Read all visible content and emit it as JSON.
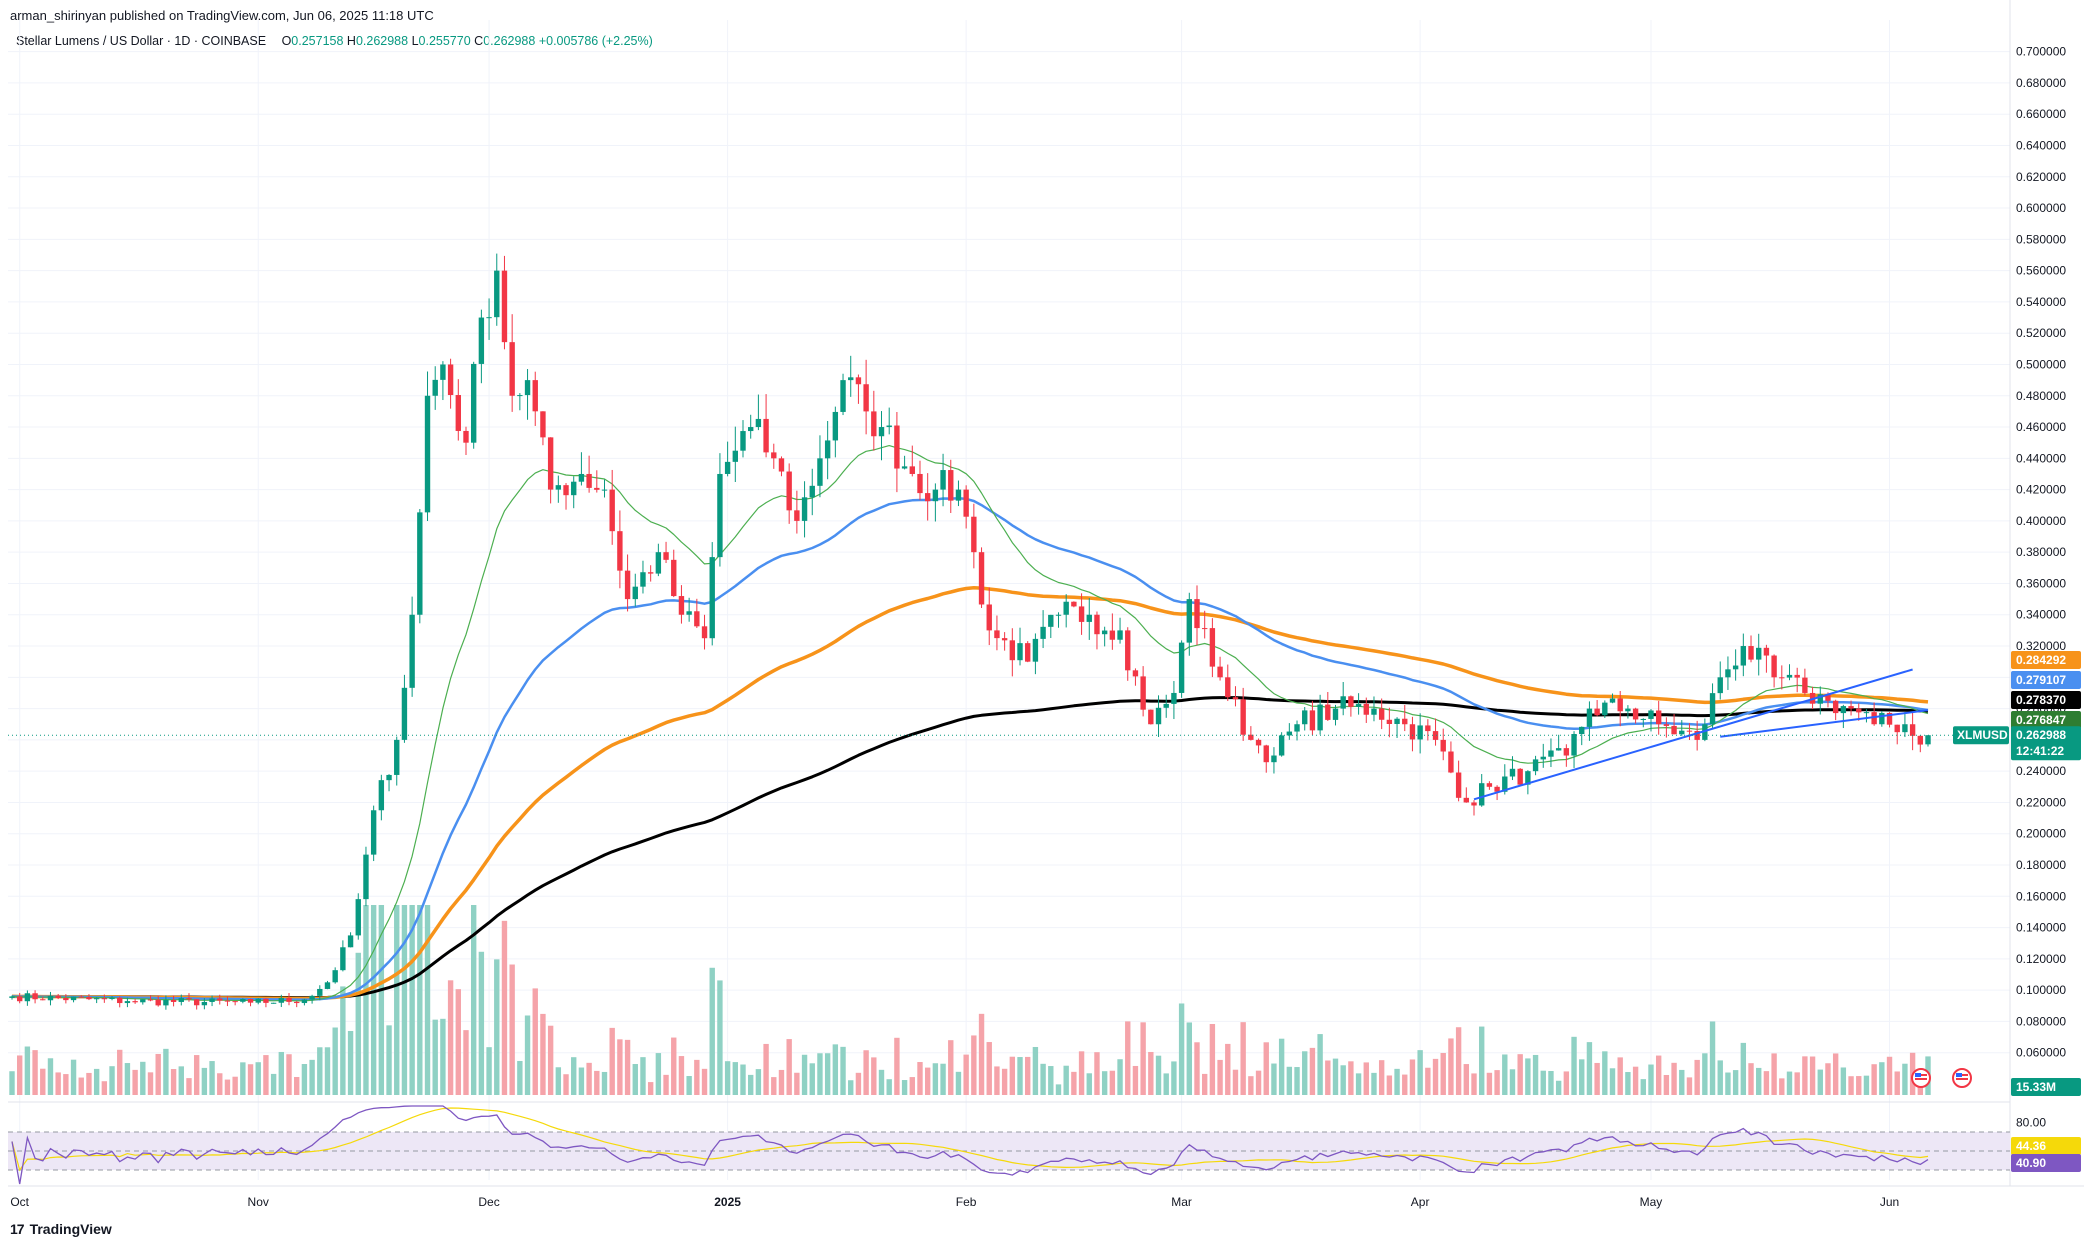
{
  "header": {
    "publisher_line": "arman_shirinyan published on TradingView.com, Jun 06, 2025 11:18 UTC"
  },
  "symbol": {
    "name": "Stellar Lumens / US Dollar · 1D · COINBASE",
    "open_label": "O",
    "open": "0.257158",
    "high_label": "H",
    "high": "0.262988",
    "low_label": "L",
    "low": "0.255770",
    "close_label": "C",
    "close": "0.262988",
    "change": "+0.005786 (+2.25%)"
  },
  "footer": {
    "logo_mark": "17",
    "logo_text": "TradingView"
  },
  "colors": {
    "up": "#089981",
    "down": "#f23645",
    "vol_up": "#8fd1c4",
    "vol_down": "#f5a3a9",
    "ema20": "#4caf50",
    "ema50": "#4a8ff0",
    "ema100": "#f7931a",
    "ema200": "#000000",
    "trendline": "#2962ff",
    "rsi": "#7e57c2",
    "rsi_ma": "#f5d90a",
    "rsi_band": "#ede7f6",
    "grid": "#f0f3fa"
  },
  "chart_data": {
    "type": "candlestick",
    "symbol": "XLMUSD",
    "exchange": "COINBASE",
    "interval": "1D",
    "y_axis": {
      "ylim": [
        0.04,
        0.71
      ],
      "ticks": [
        "0.700000",
        "0.680000",
        "0.660000",
        "0.640000",
        "0.620000",
        "0.600000",
        "0.580000",
        "0.560000",
        "0.540000",
        "0.520000",
        "0.500000",
        "0.480000",
        "0.460000",
        "0.440000",
        "0.420000",
        "0.400000",
        "0.380000",
        "0.360000",
        "0.340000",
        "0.320000",
        "0.300000",
        "0.280000",
        "0.260000",
        "0.240000",
        "0.220000",
        "0.200000",
        "0.180000",
        "0.160000",
        "0.140000",
        "0.120000",
        "0.100000",
        "0.080000",
        "0.060000"
      ]
    },
    "x_axis": {
      "ticks": [
        {
          "label": "Oct",
          "date": "2024-10-01"
        },
        {
          "label": "Nov",
          "date": "2024-11-01"
        },
        {
          "label": "Dec",
          "date": "2024-12-01"
        },
        {
          "label": "2025",
          "date": "2025-01-01"
        },
        {
          "label": "Feb",
          "date": "2025-02-01"
        },
        {
          "label": "Mar",
          "date": "2025-03-01"
        },
        {
          "label": "Apr",
          "date": "2025-04-01"
        },
        {
          "label": "May",
          "date": "2025-05-01"
        },
        {
          "label": "Jun",
          "date": "2025-06-01"
        }
      ]
    },
    "price_anchors": [
      [
        "2024-09-30",
        0.096
      ],
      [
        "2024-10-15",
        0.093
      ],
      [
        "2024-10-31",
        0.092
      ],
      [
        "2024-11-07",
        0.094
      ],
      [
        "2024-11-10",
        0.105
      ],
      [
        "2024-11-13",
        0.135
      ],
      [
        "2024-11-16",
        0.215
      ],
      [
        "2024-11-19",
        0.26
      ],
      [
        "2024-11-21",
        0.34
      ],
      [
        "2024-11-23",
        0.48
      ],
      [
        "2024-11-25",
        0.5
      ],
      [
        "2024-11-28",
        0.45
      ],
      [
        "2024-11-30",
        0.53
      ],
      [
        "2024-12-02",
        0.56
      ],
      [
        "2024-12-04",
        0.48
      ],
      [
        "2024-12-06",
        0.49
      ],
      [
        "2024-12-09",
        0.42
      ],
      [
        "2024-12-13",
        0.43
      ],
      [
        "2024-12-16",
        0.42
      ],
      [
        "2024-12-19",
        0.35
      ],
      [
        "2024-12-23",
        0.38
      ],
      [
        "2024-12-26",
        0.34
      ],
      [
        "2024-12-29",
        0.325
      ],
      [
        "2024-12-31",
        0.43
      ],
      [
        "2025-01-04",
        0.46
      ],
      [
        "2025-01-07",
        0.44
      ],
      [
        "2025-01-10",
        0.4
      ],
      [
        "2025-01-13",
        0.44
      ],
      [
        "2025-01-16",
        0.49
      ],
      [
        "2025-01-19",
        0.47
      ],
      [
        "2025-01-21",
        0.46
      ],
      [
        "2025-01-25",
        0.43
      ],
      [
        "2025-01-28",
        0.42
      ],
      [
        "2025-01-31",
        0.42
      ],
      [
        "2025-02-02",
        0.38
      ],
      [
        "2025-02-04",
        0.33
      ],
      [
        "2025-02-09",
        0.31
      ],
      [
        "2025-02-13",
        0.34
      ],
      [
        "2025-02-17",
        0.34
      ],
      [
        "2025-02-21",
        0.33
      ],
      [
        "2025-02-25",
        0.27
      ],
      [
        "2025-02-28",
        0.29
      ],
      [
        "2025-03-02",
        0.35
      ],
      [
        "2025-03-06",
        0.3
      ],
      [
        "2025-03-10",
        0.26
      ],
      [
        "2025-03-13",
        0.25
      ],
      [
        "2025-03-16",
        0.27
      ],
      [
        "2025-03-21",
        0.28
      ],
      [
        "2025-03-26",
        0.28
      ],
      [
        "2025-03-30",
        0.27
      ],
      [
        "2025-04-03",
        0.26
      ],
      [
        "2025-04-07",
        0.22
      ],
      [
        "2025-04-10",
        0.23
      ],
      [
        "2025-04-15",
        0.24
      ],
      [
        "2025-04-20",
        0.25
      ],
      [
        "2025-04-23",
        0.28
      ],
      [
        "2025-04-28",
        0.28
      ],
      [
        "2025-05-02",
        0.27
      ],
      [
        "2025-05-07",
        0.26
      ],
      [
        "2025-05-10",
        0.3
      ],
      [
        "2025-05-13",
        0.32
      ],
      [
        "2025-05-17",
        0.3
      ],
      [
        "2025-05-21",
        0.29
      ],
      [
        "2025-05-24",
        0.285
      ],
      [
        "2025-05-27",
        0.28
      ],
      [
        "2025-05-30",
        0.27
      ],
      [
        "2025-06-03",
        0.27
      ],
      [
        "2025-06-05",
        0.257
      ],
      [
        "2025-06-06",
        0.263
      ]
    ],
    "indicators": {
      "ema20_last": 0.276847,
      "ema50_last": 0.279107,
      "ema100_last": 0.284292,
      "ema200_last": 0.27837
    },
    "price_labels": [
      {
        "value": "0.284292",
        "color": "#f7931a"
      },
      {
        "value": "0.279107",
        "color": "#4a8ff0"
      },
      {
        "value": "0.278370",
        "color": "#000000"
      },
      {
        "value": "0.276847",
        "color": "#2e7d32"
      }
    ],
    "last_price": {
      "symbol": "XLMUSD",
      "value": "0.262988",
      "countdown": "12:41:22",
      "color": "#089981"
    },
    "volume": {
      "last_label": "15.33M"
    },
    "trendlines": [
      {
        "from": [
          "2025-04-08",
          0.222
        ],
        "to": [
          "2025-06-04",
          0.305
        ]
      },
      {
        "from": [
          "2025-05-10",
          0.262
        ],
        "to": [
          "2025-06-06",
          0.279
        ]
      }
    ],
    "rsi": {
      "ticks": [
        "80.00"
      ],
      "value_label": "40.90",
      "ma_label": "44.36",
      "bands": [
        70,
        30
      ]
    }
  }
}
